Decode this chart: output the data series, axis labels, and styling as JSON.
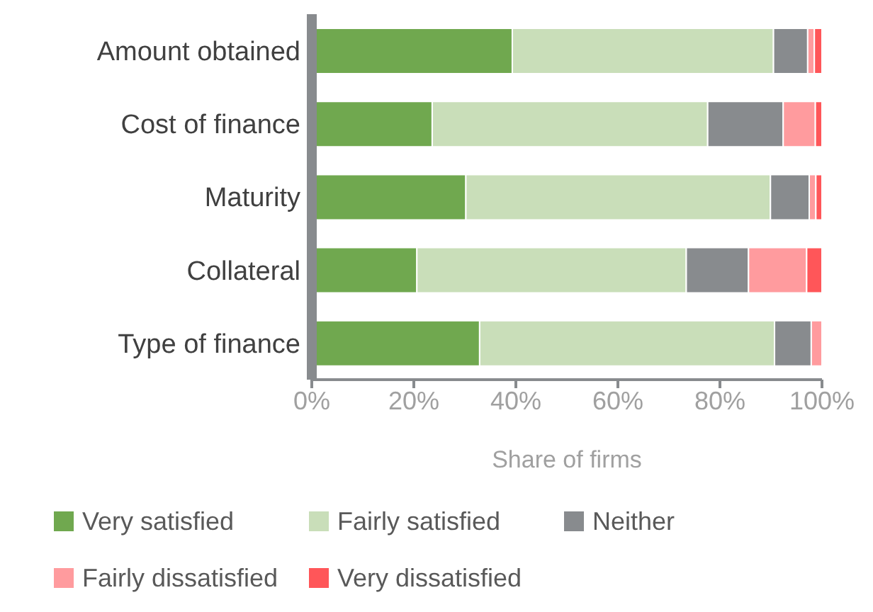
{
  "chart_data": {
    "type": "bar",
    "orientation": "horizontal",
    "stacked": true,
    "categories": [
      "Amount obtained",
      "Cost of finance",
      "Maturity",
      "Collateral",
      "Type of finance"
    ],
    "series": [
      {
        "name": "Very satisfied",
        "color": "#70a84f",
        "values": [
          39.3,
          23.6,
          30.2,
          20.6,
          32.9
        ]
      },
      {
        "name": "Fairly satisfied",
        "color": "#c9deb9",
        "values": [
          51.2,
          54,
          59.7,
          52.8,
          57.8
        ]
      },
      {
        "name": "Neither",
        "color": "#888b8e",
        "values": [
          6.7,
          14.8,
          7.6,
          12.2,
          7.2
        ]
      },
      {
        "name": "Fairly dissatisfied",
        "color": "#ff9b9e",
        "values": [
          1.3,
          6.3,
          1.3,
          11.4,
          2.1
        ]
      },
      {
        "name": "Very dissatisfied",
        "color": "#ff5659",
        "values": [
          1.5,
          1.3,
          1.2,
          3,
          0
        ]
      }
    ],
    "xlabel": "Share of firms",
    "xlim": [
      0,
      100
    ],
    "xticks": [
      {
        "value": 0,
        "label": "0%"
      },
      {
        "value": 20,
        "label": "20%"
      },
      {
        "value": 40,
        "label": "40%"
      },
      {
        "value": 60,
        "label": "60%"
      },
      {
        "value": 80,
        "label": "80%"
      },
      {
        "value": 100,
        "label": "100%"
      }
    ],
    "grid": false,
    "legend": "bottom"
  }
}
